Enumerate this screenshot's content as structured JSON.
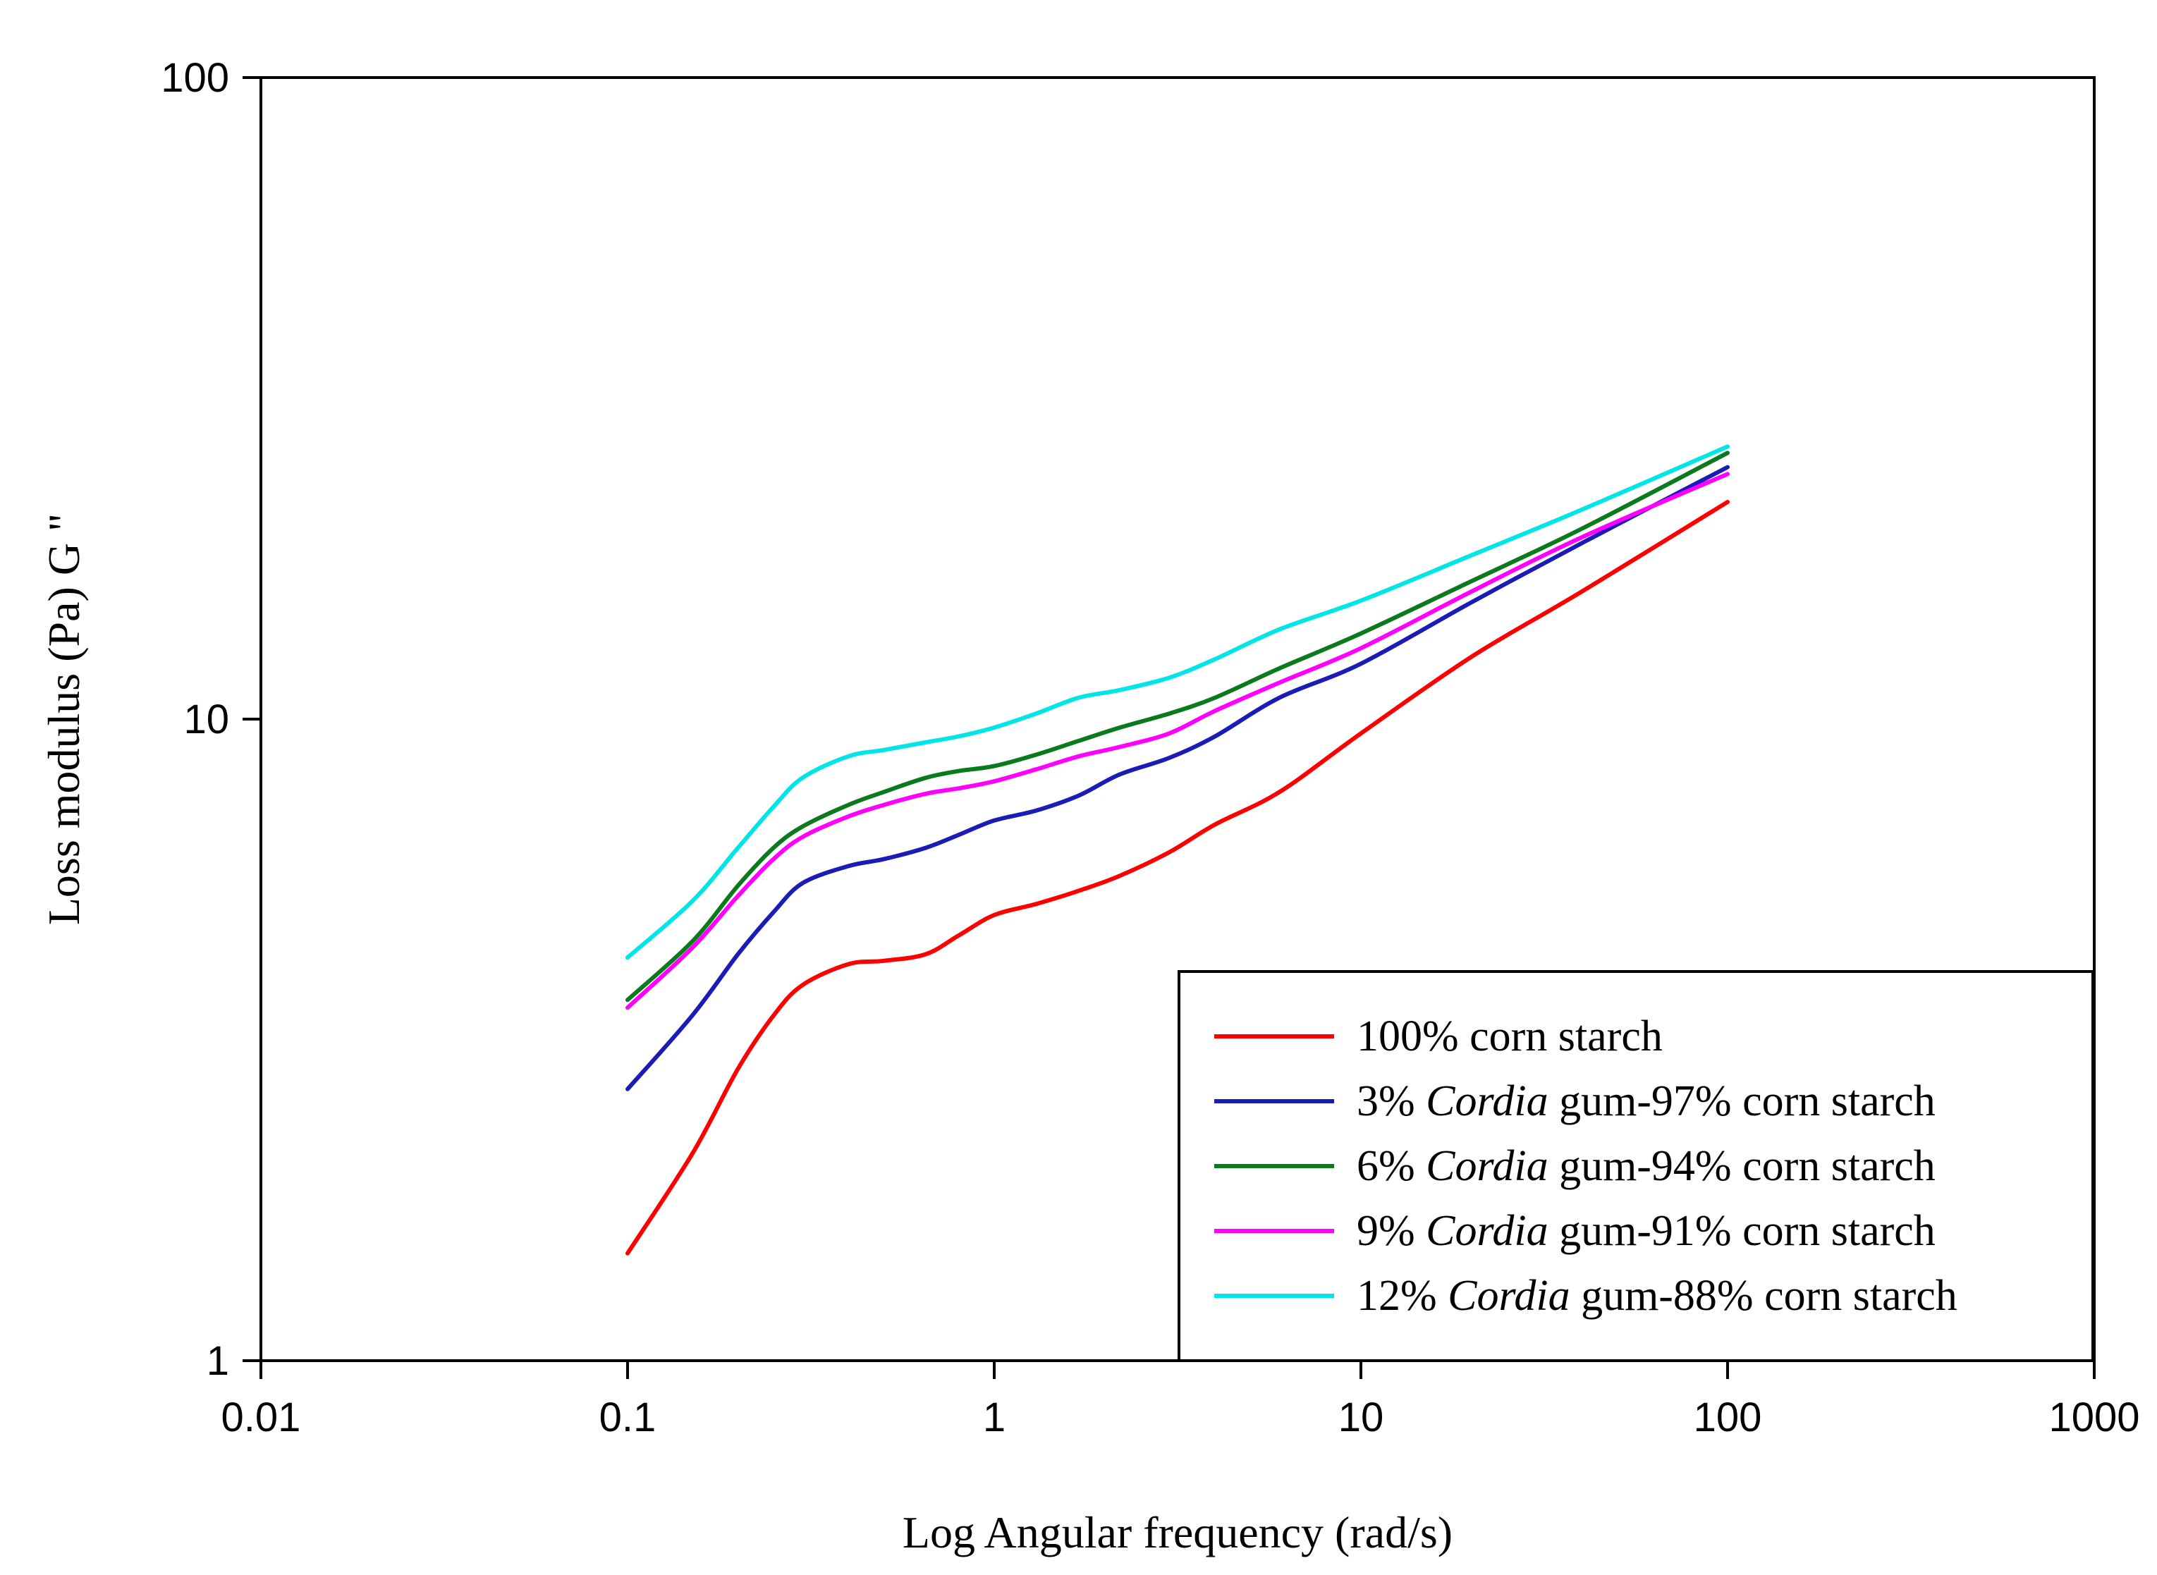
{
  "chart_data": {
    "type": "line",
    "xlabel": "Log Angular frequency (rad/s)",
    "ylabel": "Loss modulus (Pa) G \"",
    "x_scale": "log",
    "y_scale": "log",
    "xlim": [
      0.01,
      1000
    ],
    "ylim": [
      1,
      100
    ],
    "x_ticks": [
      {
        "value": 0.01,
        "label": "0.01"
      },
      {
        "value": 0.1,
        "label": "0.1"
      },
      {
        "value": 1,
        "label": "1"
      },
      {
        "value": 10,
        "label": "10"
      },
      {
        "value": 100,
        "label": "100"
      },
      {
        "value": 1000,
        "label": "1000"
      }
    ],
    "y_ticks": [
      {
        "value": 1,
        "label": "1"
      },
      {
        "value": 10,
        "label": "10"
      },
      {
        "value": 100,
        "label": "100"
      }
    ],
    "grid": false,
    "legend_position": "bottom-right",
    "series": [
      {
        "legend": {
          "pre": "100% corn starch",
          "ital": "",
          "post": ""
        },
        "color": "#ff0000",
        "x": [
          0.1,
          0.15,
          0.2,
          0.25,
          0.3,
          0.4,
          0.5,
          0.65,
          0.8,
          1.0,
          1.3,
          1.7,
          2.2,
          3.0,
          4.0,
          6.0,
          10,
          20,
          40,
          100
        ],
        "y": [
          1.47,
          2.1,
          2.85,
          3.45,
          3.85,
          4.15,
          4.2,
          4.3,
          4.6,
          4.95,
          5.15,
          5.4,
          5.7,
          6.2,
          6.85,
          7.7,
          9.5,
          12.5,
          15.8,
          21.8
        ]
      },
      {
        "legend": {
          "pre": "3% ",
          "ital": "Cordia",
          "post": " gum-97% corn starch"
        },
        "color": "#1b1bb5",
        "x": [
          0.1,
          0.15,
          0.2,
          0.25,
          0.3,
          0.4,
          0.5,
          0.65,
          0.8,
          1.0,
          1.3,
          1.7,
          2.2,
          3.0,
          4.0,
          6.0,
          10,
          20,
          40,
          100
        ],
        "y": [
          2.65,
          3.45,
          4.3,
          5.0,
          5.55,
          5.9,
          6.05,
          6.3,
          6.6,
          6.95,
          7.2,
          7.6,
          8.2,
          8.7,
          9.4,
          10.8,
          12.2,
          15.2,
          18.8,
          24.7
        ]
      },
      {
        "legend": {
          "pre": "6% ",
          "ital": "Cordia",
          "post": " gum-94% corn starch"
        },
        "color": "#0b7a1c",
        "x": [
          0.1,
          0.15,
          0.2,
          0.25,
          0.3,
          0.4,
          0.5,
          0.65,
          0.8,
          1.0,
          1.3,
          1.7,
          2.2,
          3.0,
          4.0,
          6.0,
          10,
          20,
          40,
          100
        ],
        "y": [
          3.65,
          4.5,
          5.5,
          6.3,
          6.8,
          7.35,
          7.7,
          8.1,
          8.3,
          8.45,
          8.8,
          9.25,
          9.7,
          10.2,
          10.8,
          12.0,
          13.6,
          16.4,
          19.8,
          26.0
        ]
      },
      {
        "legend": {
          "pre": "9% ",
          "ital": "Cordia",
          "post": " gum-91% corn starch"
        },
        "color": "#ff00ff",
        "x": [
          0.1,
          0.15,
          0.2,
          0.25,
          0.3,
          0.4,
          0.5,
          0.65,
          0.8,
          1.0,
          1.3,
          1.7,
          2.2,
          3.0,
          4.0,
          6.0,
          10,
          20,
          40,
          100
        ],
        "y": [
          3.55,
          4.4,
          5.3,
          6.05,
          6.55,
          7.05,
          7.35,
          7.65,
          7.8,
          8.0,
          8.35,
          8.75,
          9.05,
          9.5,
          10.3,
          11.4,
          12.9,
          15.8,
          19.2,
          24.1
        ]
      },
      {
        "legend": {
          "pre": "12% ",
          "ital": "Cordia",
          "post": " gum-88% corn starch"
        },
        "color": "#00e5e5",
        "x": [
          0.1,
          0.15,
          0.2,
          0.25,
          0.3,
          0.4,
          0.5,
          0.65,
          0.8,
          1.0,
          1.3,
          1.7,
          2.2,
          3.0,
          4.0,
          6.0,
          10,
          20,
          40,
          100
        ],
        "y": [
          4.25,
          5.2,
          6.3,
          7.3,
          8.1,
          8.75,
          8.95,
          9.2,
          9.4,
          9.7,
          10.2,
          10.8,
          11.1,
          11.6,
          12.4,
          13.8,
          15.3,
          18.0,
          21.2,
          26.6
        ]
      }
    ]
  }
}
